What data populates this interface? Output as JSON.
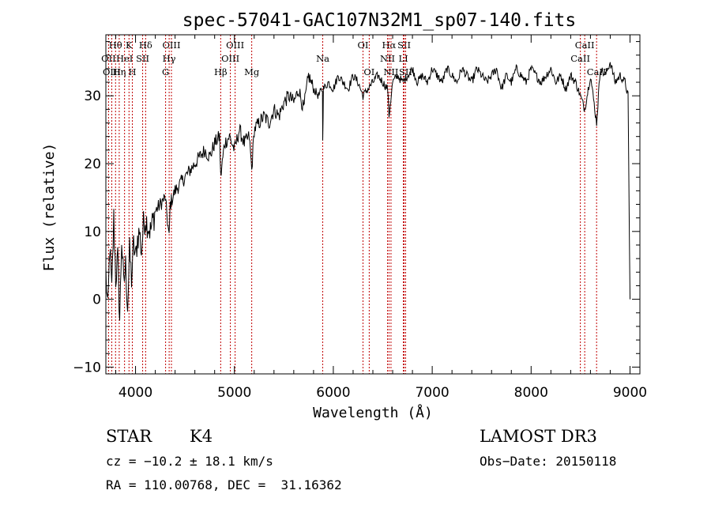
{
  "chart_data": {
    "type": "line",
    "title": "spec-57041-GAC107N32M1_sp07-140.fits",
    "xlabel": "Wavelength (Å)",
    "ylabel": "Flux (relative)",
    "xlim": [
      3700,
      9100
    ],
    "ylim": [
      -11,
      39
    ],
    "x_ticks": [
      4000,
      5000,
      6000,
      7000,
      8000,
      9000
    ],
    "y_ticks": [
      -10,
      0,
      10,
      20,
      30
    ],
    "series": [
      {
        "name": "flux",
        "x": [
          3700,
          3720,
          3740,
          3760,
          3780,
          3800,
          3820,
          3840,
          3860,
          3880,
          3900,
          3920,
          3940,
          3960,
          3980,
          4000,
          4020,
          4040,
          4060,
          4080,
          4100,
          4150,
          4200,
          4250,
          4300,
          4340,
          4350,
          4400,
          4450,
          4500,
          4550,
          4600,
          4650,
          4700,
          4750,
          4800,
          4850,
          4861,
          4900,
          4950,
          5000,
          5050,
          5100,
          5150,
          5175,
          5200,
          5250,
          5300,
          5350,
          5400,
          5450,
          5500,
          5550,
          5600,
          5650,
          5700,
          5750,
          5800,
          5850,
          5890,
          5893,
          5900,
          5950,
          6000,
          6050,
          6100,
          6150,
          6200,
          6250,
          6300,
          6350,
          6400,
          6450,
          6500,
          6550,
          6563,
          6600,
          6650,
          6700,
          6750,
          6800,
          6850,
          6900,
          6950,
          7000,
          7050,
          7100,
          7150,
          7200,
          7250,
          7300,
          7350,
          7400,
          7450,
          7500,
          7550,
          7600,
          7650,
          7700,
          7750,
          7800,
          7850,
          7900,
          7950,
          8000,
          8050,
          8100,
          8150,
          8200,
          8250,
          8300,
          8350,
          8400,
          8450,
          8498,
          8542,
          8600,
          8662,
          8700,
          8750,
          8800,
          8850,
          8900,
          8950,
          8980,
          9000
        ],
        "y": [
          4,
          -2,
          8,
          1,
          12,
          3,
          6,
          -3,
          9,
          2,
          5,
          -1,
          7,
          3,
          8,
          6,
          9,
          10,
          7,
          11,
          12,
          10,
          13,
          14,
          15,
          9,
          14,
          16,
          17,
          18,
          19,
          20,
          21,
          22,
          21,
          23,
          24,
          18,
          23,
          24,
          22,
          25,
          23,
          24,
          19,
          25,
          26,
          27,
          26,
          28,
          27,
          29,
          30,
          29,
          31,
          28,
          33,
          31,
          30,
          31,
          24,
          31,
          32,
          31,
          33,
          32,
          31,
          33,
          32,
          30,
          31,
          32,
          33,
          32,
          31,
          27,
          32,
          33,
          32,
          33,
          34,
          32,
          33,
          32,
          34,
          33,
          32,
          34,
          33,
          32,
          34,
          33,
          32,
          34,
          33,
          32,
          33,
          34,
          31,
          33,
          32,
          34,
          33,
          32,
          34,
          33,
          32,
          33,
          34,
          32,
          33,
          31,
          33,
          32,
          30,
          28,
          33,
          26,
          34,
          33,
          35,
          32,
          33,
          32,
          30,
          0
        ]
      }
    ],
    "spectral_lines": [
      {
        "name": "Hθ",
        "wavelength": 3798,
        "row": 1
      },
      {
        "name": "OII",
        "wavelength": 3727,
        "row": 2
      },
      {
        "name": "OIII",
        "wavelength": 3760,
        "row": 3
      },
      {
        "name": "K",
        "wavelength": 3934,
        "row": 1
      },
      {
        "name": "HeI",
        "wavelength": 3889,
        "row": 2
      },
      {
        "name": "Hη",
        "wavelength": 3835,
        "row": 3
      },
      {
        "name": "SII",
        "wavelength": 4072,
        "row": 2
      },
      {
        "name": "H",
        "wavelength": 3968,
        "row": 3
      },
      {
        "name": "Hδ",
        "wavelength": 4102,
        "row": 1
      },
      {
        "name": "OIII",
        "wavelength": 4363,
        "row": 1
      },
      {
        "name": "Hγ",
        "wavelength": 4340,
        "row": 2
      },
      {
        "name": "G",
        "wavelength": 4304,
        "row": 3
      },
      {
        "name": "OIII",
        "wavelength": 5007,
        "row": 1
      },
      {
        "name": "OIII",
        "wavelength": 4959,
        "row": 2
      },
      {
        "name": "Hβ",
        "wavelength": 4861,
        "row": 3
      },
      {
        "name": "Mg",
        "wavelength": 5175,
        "row": 3
      },
      {
        "name": "Na",
        "wavelength": 5893,
        "row": 2
      },
      {
        "name": "OI",
        "wavelength": 6300,
        "row": 1
      },
      {
        "name": "OI",
        "wavelength": 6363,
        "row": 3
      },
      {
        "name": "Hα",
        "wavelength": 6563,
        "row": 1
      },
      {
        "name": "NII",
        "wavelength": 6548,
        "row": 2
      },
      {
        "name": "NII",
        "wavelength": 6583,
        "row": 3
      },
      {
        "name": "SII",
        "wavelength": 6716,
        "row": 1
      },
      {
        "name": "LI",
        "wavelength": 6708,
        "row": 2
      },
      {
        "name": "SII",
        "wavelength": 6731,
        "row": 3
      },
      {
        "name": "CaII",
        "wavelength": 8542,
        "row": 1
      },
      {
        "name": "CaII",
        "wavelength": 8498,
        "row": 2
      },
      {
        "name": "CaII",
        "wavelength": 8662,
        "row": 3
      }
    ]
  },
  "footer": {
    "object_class": "STAR",
    "subclass": "K4",
    "survey": "LAMOST DR3",
    "redshift": "cz = −10.2 ± 18.1 km/s",
    "obs_date": "Obs−Date: 20150118",
    "coords": "RA = 110.00768, DEC =  31.16362"
  }
}
